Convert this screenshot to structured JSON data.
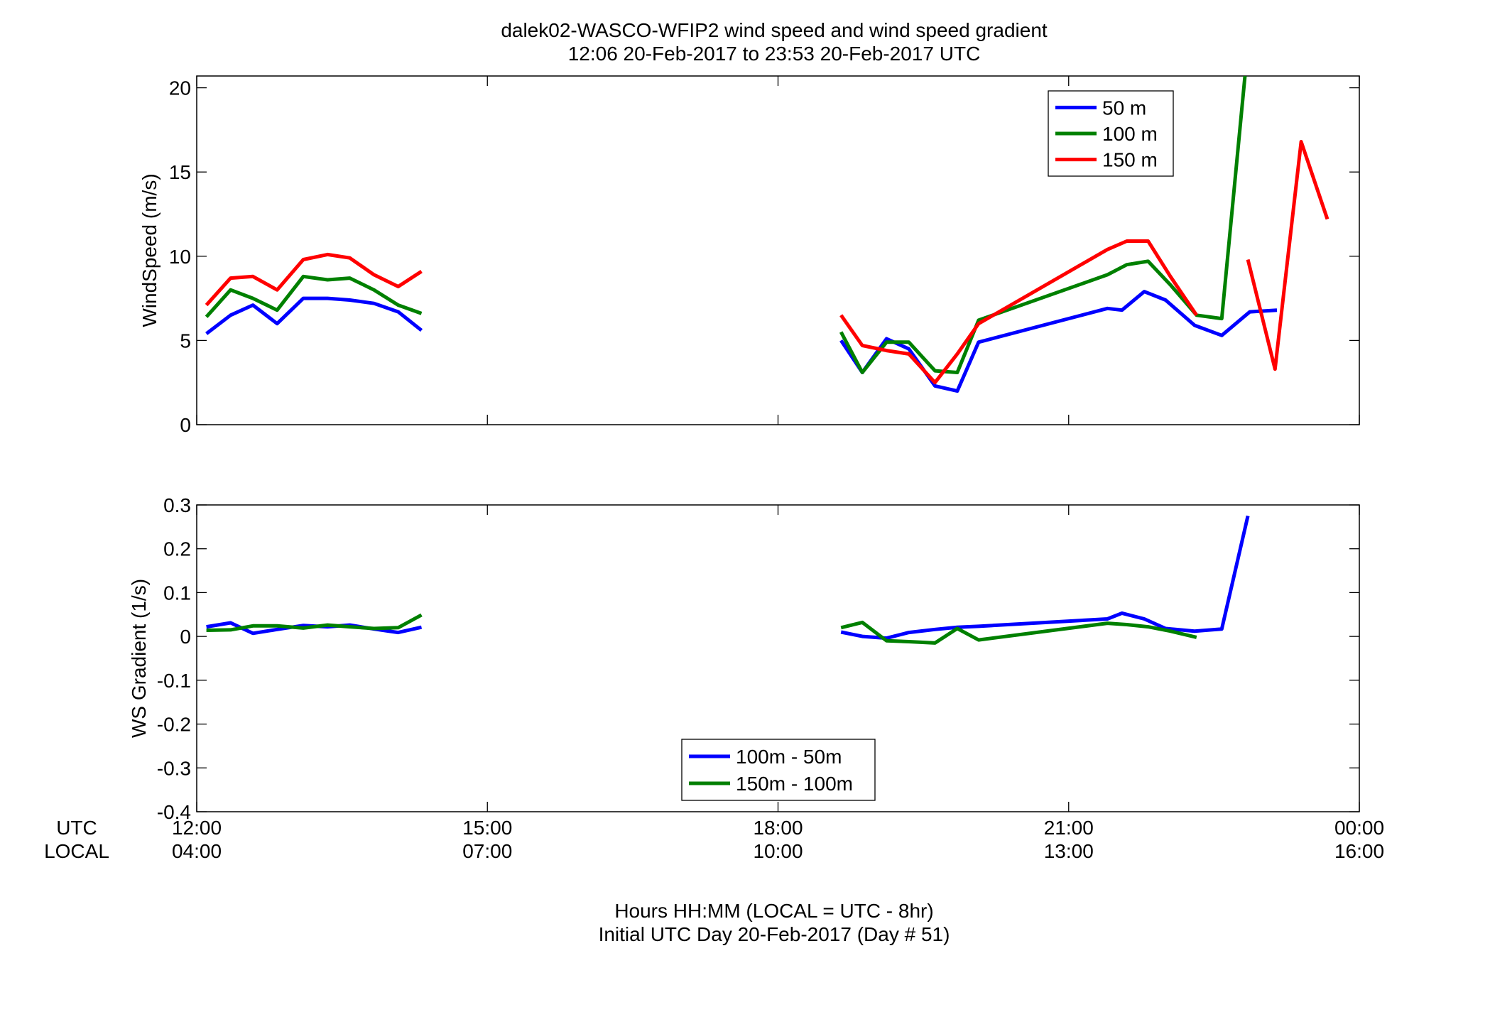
{
  "title": {
    "line1": "dalek02-WASCO-WFIP2  wind speed and wind speed gradient",
    "line2": "12:06 20-Feb-2017 to 23:53 20-Feb-2017  UTC"
  },
  "footer": {
    "line1": "Hours HH:MM  (LOCAL = UTC - 8hr)",
    "line2": "Initial UTC Day 20-Feb-2017 (Day # 51)"
  },
  "time_axis": {
    "row_label_utc": "UTC",
    "row_label_local": "LOCAL",
    "ticks": [
      12,
      15,
      18,
      21,
      24
    ],
    "utc_labels": [
      "12:00",
      "15:00",
      "18:00",
      "21:00",
      "00:00"
    ],
    "local_labels": [
      "04:00",
      "07:00",
      "10:00",
      "13:00",
      "16:00"
    ],
    "xlim": [
      12,
      24
    ]
  },
  "chart_data": [
    {
      "type": "line",
      "ylabel": "WindSpeed (m/s)",
      "ylim": [
        0,
        20.7
      ],
      "yticks": [
        0,
        5,
        10,
        15,
        20
      ],
      "ytick_labels": [
        "0",
        "5",
        "10",
        "15",
        "20"
      ],
      "legend_position": "top-right",
      "series": [
        {
          "name": "50 m",
          "color": "#0000ff",
          "segments": [
            {
              "x": [
                12.1,
                12.35,
                12.58,
                12.83,
                13.1,
                13.35,
                13.58,
                13.83,
                14.08,
                14.32
              ],
              "y": [
                5.4,
                6.5,
                7.1,
                6.0,
                7.5,
                7.5,
                7.4,
                7.2,
                6.7,
                5.6
              ]
            },
            {
              "x": [
                18.65,
                18.87,
                19.12,
                19.35,
                19.62,
                19.85,
                20.07,
                21.4,
                21.55,
                21.78,
                22.0,
                22.3,
                22.58,
                22.87,
                23.15
              ],
              "y": [
                5.0,
                3.1,
                5.1,
                4.5,
                2.3,
                2.0,
                4.9,
                6.9,
                6.8,
                7.9,
                7.4,
                5.9,
                5.3,
                6.7,
                6.8
              ]
            }
          ]
        },
        {
          "name": "100 m",
          "color": "#008000",
          "segments": [
            {
              "x": [
                12.1,
                12.35,
                12.58,
                12.83,
                13.1,
                13.35,
                13.58,
                13.83,
                14.08,
                14.32
              ],
              "y": [
                6.4,
                8.0,
                7.5,
                6.8,
                8.8,
                8.6,
                8.7,
                8.0,
                7.1,
                6.6
              ]
            },
            {
              "x": [
                18.65,
                18.87,
                19.12,
                19.35,
                19.62,
                19.85,
                20.07,
                21.4,
                21.6,
                21.82,
                22.05,
                22.32,
                22.58,
                22.82
              ],
              "y": [
                5.5,
                3.1,
                4.9,
                4.9,
                3.2,
                3.1,
                6.2,
                8.9,
                9.5,
                9.7,
                8.3,
                6.5,
                6.3,
                20.7
              ]
            }
          ]
        },
        {
          "name": "150 m",
          "color": "#ff0000",
          "segments": [
            {
              "x": [
                12.1,
                12.35,
                12.58,
                12.83,
                13.1,
                13.35,
                13.58,
                13.83,
                14.08,
                14.32
              ],
              "y": [
                7.1,
                8.7,
                8.8,
                8.0,
                9.8,
                10.1,
                9.9,
                8.9,
                8.2,
                9.1
              ]
            },
            {
              "x": [
                18.65,
                18.87,
                19.12,
                19.35,
                19.62,
                19.85,
                20.07,
                21.4,
                21.6,
                21.82,
                22.05,
                22.32
              ],
              "y": [
                6.5,
                4.7,
                4.4,
                4.2,
                2.5,
                4.2,
                6.0,
                10.4,
                10.9,
                10.9,
                8.8,
                6.5
              ]
            },
            {
              "x": [
                22.85,
                23.13,
                23.4,
                23.67
              ],
              "y": [
                9.8,
                3.3,
                16.8,
                12.2
              ]
            }
          ]
        }
      ]
    },
    {
      "type": "line",
      "ylabel": "WS Gradient (1/s)",
      "ylim": [
        -0.4,
        0.3
      ],
      "yticks": [
        -0.4,
        -0.3,
        -0.2,
        -0.1,
        0,
        0.1,
        0.2,
        0.3
      ],
      "ytick_labels": [
        "-0.4",
        "-0.3",
        "-0.2",
        "-0.1",
        "0",
        "0.1",
        "0.2",
        "0.3"
      ],
      "legend_position": "bottom-center",
      "series": [
        {
          "name": "100m - 50m",
          "color": "#0000ff",
          "segments": [
            {
              "x": [
                12.1,
                12.35,
                12.58,
                12.83,
                13.1,
                13.35,
                13.58,
                13.83,
                14.08,
                14.32
              ],
              "y": [
                0.022,
                0.031,
                0.007,
                0.016,
                0.025,
                0.022,
                0.026,
                0.017,
                0.009,
                0.021
              ]
            },
            {
              "x": [
                18.65,
                18.87,
                19.12,
                19.35,
                19.62,
                19.85,
                20.07,
                21.4,
                21.55,
                21.78,
                22.0,
                22.3,
                22.58,
                22.85
              ],
              "y": [
                0.01,
                0.0,
                -0.004,
                0.009,
                0.016,
                0.021,
                0.023,
                0.04,
                0.053,
                0.04,
                0.018,
                0.012,
                0.017,
                0.275
              ]
            }
          ]
        },
        {
          "name": "150m - 100m",
          "color": "#008000",
          "segments": [
            {
              "x": [
                12.1,
                12.35,
                12.58,
                12.83,
                13.1,
                13.35,
                13.58,
                13.83,
                14.08,
                14.32
              ],
              "y": [
                0.014,
                0.015,
                0.024,
                0.024,
                0.019,
                0.026,
                0.022,
                0.018,
                0.02,
                0.049
              ]
            },
            {
              "x": [
                18.65,
                18.87,
                19.12,
                19.35,
                19.62,
                19.85,
                20.07,
                21.4,
                21.6,
                21.82,
                22.05,
                22.32
              ],
              "y": [
                0.02,
                0.032,
                -0.01,
                -0.012,
                -0.015,
                0.018,
                -0.008,
                0.03,
                0.027,
                0.022,
                0.012,
                -0.002
              ]
            }
          ]
        }
      ]
    }
  ]
}
